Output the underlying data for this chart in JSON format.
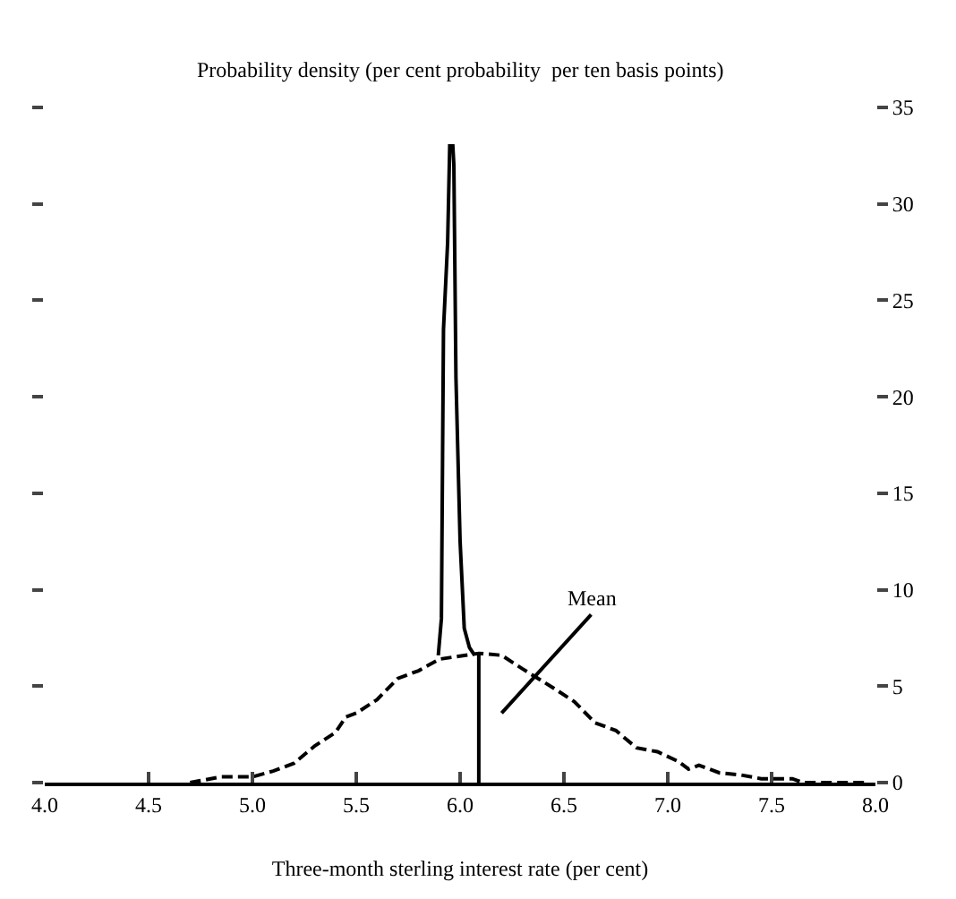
{
  "chart_data": {
    "type": "line",
    "xlabel": "Three-month sterling interest rate (per cent)",
    "ylabel": "Probability density (per cent probability  per ten basis points)",
    "series": [
      {
        "color": "#000000",
        "line_style": "solid",
        "x": [
          5.895,
          5.91,
          5.92,
          5.94,
          5.95,
          5.965,
          5.97,
          5.98,
          6.0,
          6.02,
          6.045,
          6.07
        ],
        "values": [
          6.6,
          8.5,
          23.5,
          28,
          33,
          33,
          32,
          21,
          12.5,
          8,
          7,
          6.6
        ]
      },
      {
        "color": "#000000",
        "line_style": "dashed",
        "x": [
          4.7,
          4.75,
          4.85,
          5.0,
          5.1,
          5.2,
          5.3,
          5.4,
          5.45,
          5.5,
          5.6,
          5.7,
          5.8,
          5.9,
          6.09,
          6.2,
          6.3,
          6.45,
          6.55,
          6.65,
          6.75,
          6.85,
          6.95,
          7.05,
          7.1,
          7.15,
          7.25,
          7.35,
          7.45,
          7.6,
          7.65,
          7.95
        ],
        "values": [
          0,
          0.1,
          0.3,
          0.3,
          0.6,
          1.0,
          1.9,
          2.6,
          3.4,
          3.6,
          4.3,
          5.4,
          5.8,
          6.4,
          6.7,
          6.6,
          5.9,
          4.9,
          4.2,
          3.1,
          2.7,
          1.8,
          1.6,
          1.1,
          0.7,
          0.9,
          0.5,
          0.4,
          0.2,
          0.2,
          0,
          0
        ]
      },
      {
        "color": "#000000",
        "line_style": "solid",
        "x": [
          6.09,
          6.09
        ],
        "values": [
          0,
          6.6
        ]
      }
    ],
    "annotations": [
      "Mean"
    ],
    "xlim": [
      4.0,
      8.0
    ],
    "xticks": [
      {
        "value": 4.0,
        "label": "4.0"
      },
      4.5,
      {
        "value": 5.0,
        "label": "5.0"
      },
      5.5,
      {
        "value": 6.0,
        "label": "6.0"
      },
      6.5,
      {
        "value": 7.0,
        "label": "7.0"
      },
      7.5,
      {
        "value": 8.0,
        "label": "8.0"
      }
    ],
    "ylim": [
      0,
      35
    ],
    "yticks": [
      0,
      5,
      10,
      15,
      20,
      25,
      30,
      35
    ],
    "marker": "none"
  }
}
